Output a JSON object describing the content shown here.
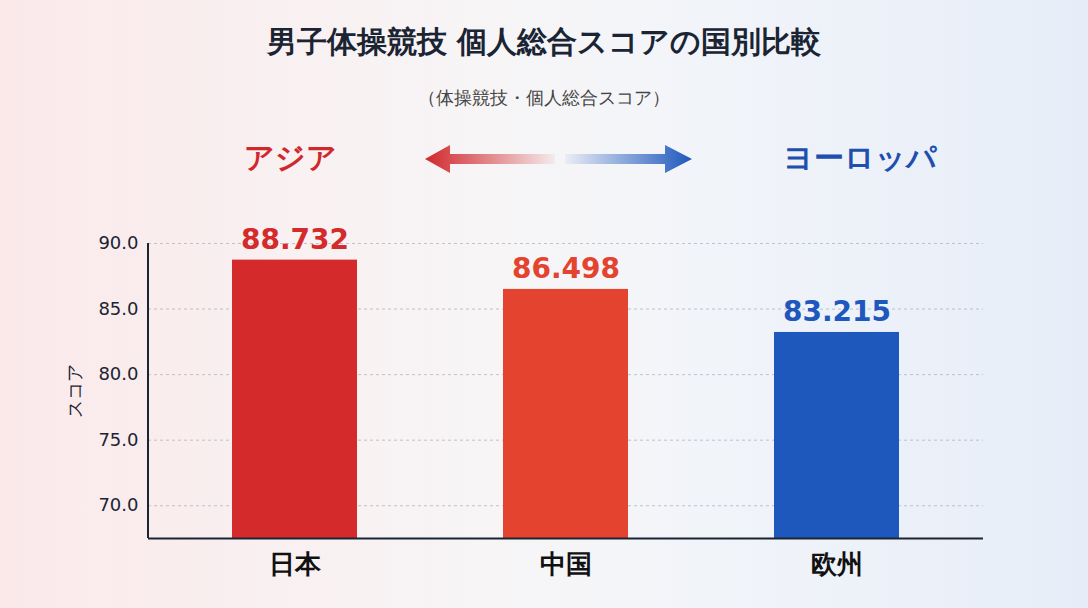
{
  "chart_data": {
    "type": "bar",
    "title": "男子体操競技 個人総合スコアの国別比較",
    "subtitle": "（体操競技・個人総合スコア）",
    "annotations": [
      "アジア",
      "ヨーロッパ"
    ],
    "y_label": "スコア",
    "categories": [
      "日本",
      "中国",
      "欧州"
    ],
    "values": [
      88.732,
      86.498,
      83.215
    ],
    "colors": [
      "#d42a2b",
      "#e4432f",
      "#1f58bd"
    ],
    "ylim": [
      67.5,
      90
    ],
    "yticks": [
      {
        "value": 70,
        "label": "70.0"
      },
      {
        "value": 75,
        "label": "75.0"
      },
      {
        "value": 80,
        "label": "80.0"
      },
      {
        "value": 85,
        "label": "85.0"
      },
      {
        "value": 90,
        "label": "90.0"
      }
    ],
    "grid": true,
    "data_labels": true
  }
}
